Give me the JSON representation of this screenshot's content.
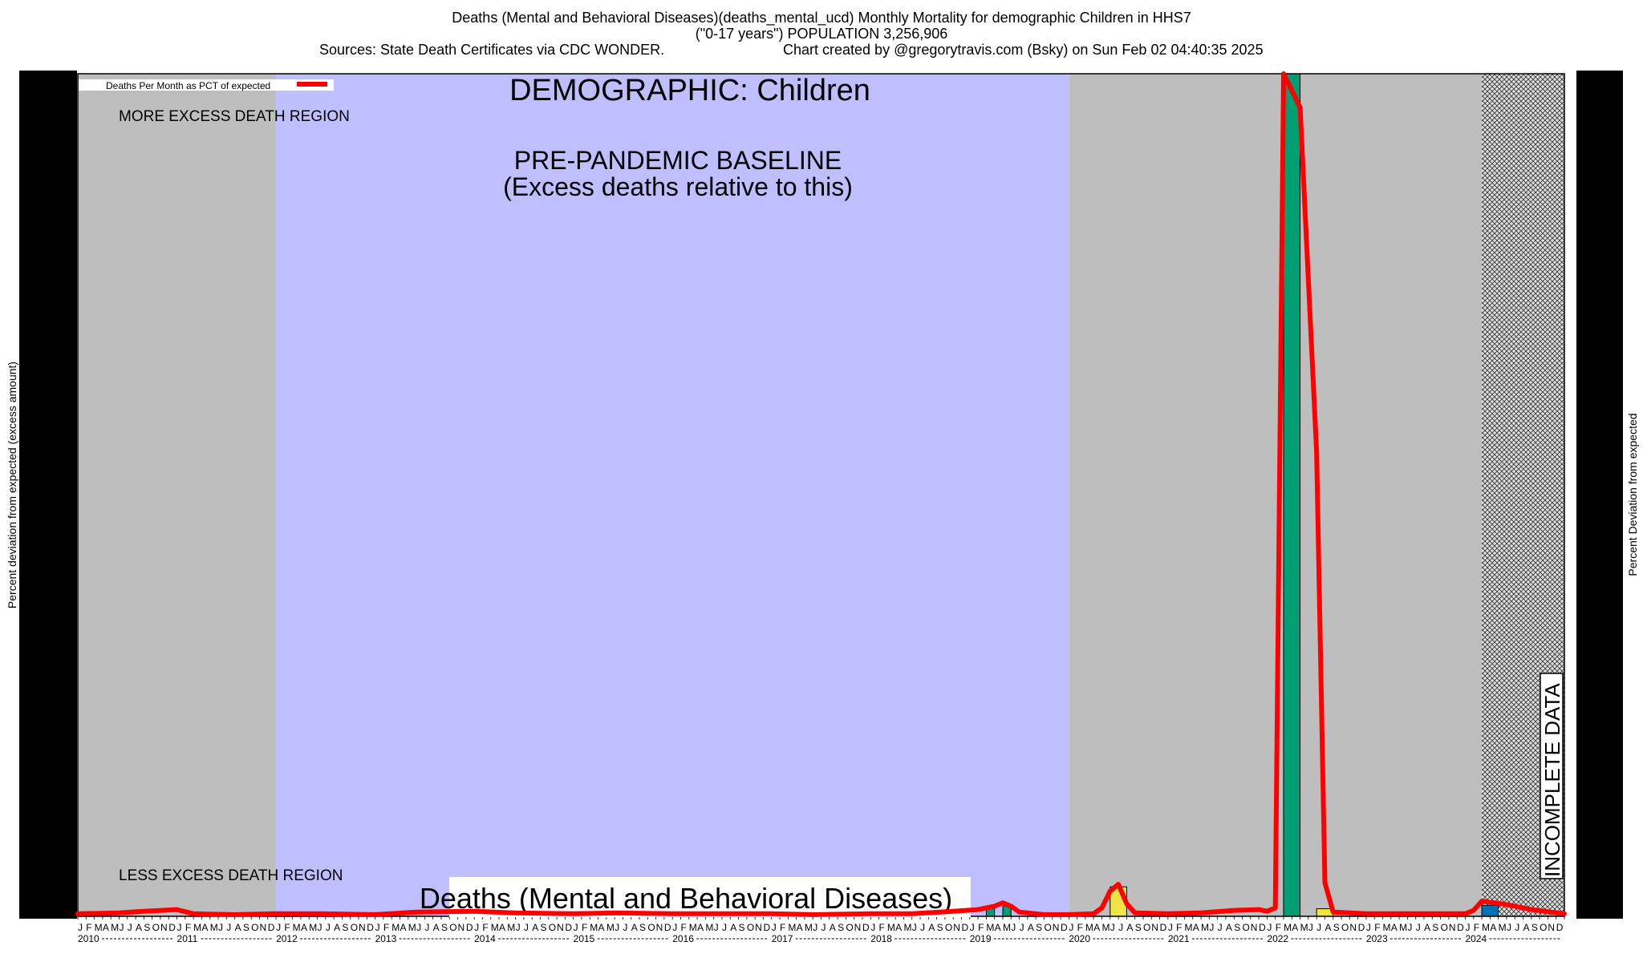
{
  "header": {
    "line1": "Deaths (Mental and Behavioral Diseases)(deaths_mental_ucd) Monthly Mortality for demographic Children in HHS7",
    "line2": "(\"0-17 years\") POPULATION 3,256,906",
    "line3_left": "Sources: State Death Certificates via CDC WONDER.",
    "line3_right": "Chart created by @gregorytravis.com (Bsky) on Sun Feb 02 04:40:35 2025"
  },
  "chart_data": {
    "type": "line",
    "title": "DEMOGRAPHIC: Children",
    "subtitle": "Deaths (Mental and Behavioral Diseases)",
    "ylabel": "Percent deviation from expected (excess amount)",
    "ylabel_right": "Percent Deviation from expected",
    "legend": {
      "label": "Deaths Per Month as PCT of expected",
      "placement": "top-left",
      "color": "#ff0000"
    },
    "annotations": {
      "more_excess": "MORE EXCESS DEATH REGION",
      "less_excess": "LESS EXCESS DEATH REGION",
      "baseline_line1": "PRE-PANDEMIC BASELINE",
      "baseline_line2": "(Excess deaths relative to this)",
      "incomplete": "INCOMPLETE DATA"
    },
    "x_start": "2010-01",
    "x_end": "2025-01",
    "years": [
      "2010",
      "2011",
      "2012",
      "2013",
      "2014",
      "2015",
      "2016",
      "2017",
      "2018",
      "2019",
      "2020",
      "2021",
      "2022",
      "2023",
      "2024"
    ],
    "month_letters": [
      "J",
      "F",
      "M",
      "A",
      "M",
      "J",
      "J",
      "A",
      "S",
      "O",
      "N",
      "D"
    ],
    "ylim": [
      0,
      100
    ],
    "regions": [
      {
        "start": "2010-01",
        "end": "2012-01",
        "color": "#bebebe"
      },
      {
        "start": "2012-01",
        "end": "2020-01",
        "color": "#bfbfff"
      },
      {
        "start": "2020-01",
        "end": "2024-03",
        "color": "#bebebe"
      }
    ],
    "incomplete_region": {
      "start": "2024-03",
      "end": "2025-01"
    },
    "bars": [
      {
        "start": "2019-03",
        "end": "2019-04",
        "value": 1.0,
        "color": "#009e73"
      },
      {
        "start": "2019-05",
        "end": "2019-06",
        "value": 1.2,
        "color": "#009e73"
      },
      {
        "start": "2020-06",
        "end": "2020-08",
        "value": 3.5,
        "color": "#f0e442"
      },
      {
        "start": "2022-03",
        "end": "2022-05",
        "value": 100,
        "color": "#009e73"
      },
      {
        "start": "2022-07",
        "end": "2022-09",
        "value": 0.9,
        "color": "#f0e442"
      },
      {
        "start": "2024-03",
        "end": "2024-05",
        "value": 1.3,
        "color": "#0072b2"
      }
    ],
    "series": [
      {
        "color": "#ff0000",
        "points": [
          [
            "2010-01",
            0.3
          ],
          [
            "2010-06",
            0.4
          ],
          [
            "2010-09",
            0.6
          ],
          [
            "2011-01",
            0.8
          ],
          [
            "2011-03",
            0.3
          ],
          [
            "2011-08",
            0.2
          ],
          [
            "2012-01",
            0.3
          ],
          [
            "2012-06",
            0.3
          ],
          [
            "2013-01",
            0.2
          ],
          [
            "2013-06",
            0.5
          ],
          [
            "2014-01",
            0.6
          ],
          [
            "2014-06",
            0.4
          ],
          [
            "2015-01",
            0.3
          ],
          [
            "2015-06",
            0.4
          ],
          [
            "2016-01",
            0.3
          ],
          [
            "2016-06",
            0.3
          ],
          [
            "2017-01",
            0.3
          ],
          [
            "2017-06",
            0.2
          ],
          [
            "2018-01",
            0.3
          ],
          [
            "2018-06",
            0.3
          ],
          [
            "2018-11",
            0.6
          ],
          [
            "2019-02",
            0.8
          ],
          [
            "2019-04",
            1.2
          ],
          [
            "2019-05",
            1.6
          ],
          [
            "2019-06",
            1.2
          ],
          [
            "2019-07",
            0.5
          ],
          [
            "2019-10",
            0.2
          ],
          [
            "2020-01",
            0.2
          ],
          [
            "2020-04",
            0.3
          ],
          [
            "2020-05",
            1.0
          ],
          [
            "2020-06",
            3.0
          ],
          [
            "2020-07",
            3.8
          ],
          [
            "2020-08",
            1.5
          ],
          [
            "2020-09",
            0.4
          ],
          [
            "2021-01",
            0.3
          ],
          [
            "2021-05",
            0.4
          ],
          [
            "2021-09",
            0.7
          ],
          [
            "2021-12",
            0.8
          ],
          [
            "2022-01",
            0.6
          ],
          [
            "2022-02",
            1.0
          ],
          [
            "2022-03",
            100
          ],
          [
            "2022-05",
            96
          ],
          [
            "2022-07",
            55
          ],
          [
            "2022-08",
            4
          ],
          [
            "2022-09",
            0.5
          ],
          [
            "2023-01",
            0.3
          ],
          [
            "2023-06",
            0.3
          ],
          [
            "2024-01",
            0.3
          ],
          [
            "2024-02",
            0.7
          ],
          [
            "2024-03",
            1.8
          ],
          [
            "2024-06",
            1.4
          ],
          [
            "2024-09",
            0.8
          ],
          [
            "2025-01",
            0.3
          ]
        ]
      }
    ]
  }
}
